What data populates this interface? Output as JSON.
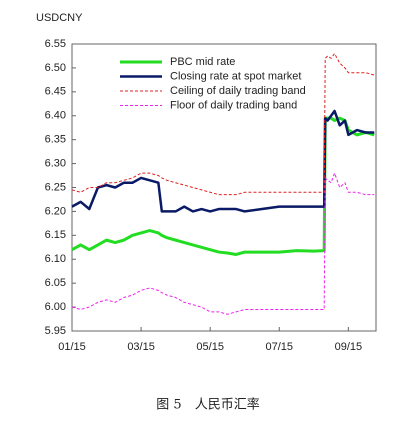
{
  "chart_data": {
    "type": "line",
    "y_label": "USDCNY",
    "caption": "图 5　人民币汇率",
    "legend": "upper left",
    "grid": false,
    "x": [
      1.0,
      1.25,
      1.5,
      1.75,
      2.0,
      2.25,
      2.5,
      2.75,
      3.0,
      3.25,
      3.5,
      3.6,
      3.75,
      4.0,
      4.25,
      4.5,
      4.75,
      5.0,
      5.25,
      5.5,
      5.75,
      6.0,
      6.5,
      7.0,
      7.5,
      8.0,
      8.3,
      8.33,
      8.4,
      8.5,
      8.6,
      8.75,
      8.9,
      9.0,
      9.25,
      9.5,
      9.75
    ],
    "xlim": [
      1,
      9.8
    ],
    "xticks": [
      {
        "value": 1,
        "label": "01/15"
      },
      {
        "value": 3,
        "label": "03/15"
      },
      {
        "value": 5,
        "label": "05/15"
      },
      {
        "value": 7,
        "label": "07/15"
      },
      {
        "value": 9,
        "label": "09/15"
      }
    ],
    "ylim": [
      5.95,
      6.55
    ],
    "yticks": [
      5.95,
      {
        "value": 6.0,
        "label": "6.00"
      },
      6.05,
      {
        "value": 6.1,
        "label": "6.10"
      },
      6.15,
      {
        "value": 6.2,
        "label": "6.20"
      },
      6.25,
      {
        "value": 6.3,
        "label": "6.30"
      },
      6.35,
      {
        "value": 6.4,
        "label": "6.40"
      },
      6.45,
      {
        "value": 6.5,
        "label": "6.50"
      },
      6.55
    ],
    "series": [
      {
        "name": "PBC mid rate",
        "color": "#22dd22",
        "width": 3,
        "dash": false,
        "values": [
          6.12,
          6.13,
          6.12,
          6.13,
          6.14,
          6.135,
          6.14,
          6.15,
          6.155,
          6.16,
          6.155,
          6.15,
          6.145,
          6.14,
          6.135,
          6.13,
          6.125,
          6.12,
          6.115,
          6.113,
          6.11,
          6.115,
          6.115,
          6.115,
          6.118,
          6.117,
          6.118,
          6.395,
          6.395,
          6.395,
          6.39,
          6.395,
          6.39,
          6.37,
          6.36,
          6.365,
          6.36
        ]
      },
      {
        "name": "Closing rate at spot market",
        "color": "#0a1a66",
        "width": 2.5,
        "dash": false,
        "values": [
          6.21,
          6.22,
          6.205,
          6.25,
          6.255,
          6.25,
          6.26,
          6.26,
          6.27,
          6.265,
          6.26,
          6.2,
          6.2,
          6.2,
          6.21,
          6.2,
          6.205,
          6.2,
          6.205,
          6.205,
          6.205,
          6.2,
          6.205,
          6.21,
          6.21,
          6.21,
          6.21,
          6.395,
          6.39,
          6.4,
          6.41,
          6.38,
          6.39,
          6.36,
          6.37,
          6.365,
          6.365
        ]
      },
      {
        "name": "Ceiling of daily trading band",
        "color": "#e02020",
        "width": 1,
        "dash": true,
        "values": [
          6.245,
          6.24,
          6.25,
          6.25,
          6.26,
          6.26,
          6.265,
          6.27,
          6.28,
          6.28,
          6.275,
          6.27,
          6.265,
          6.26,
          6.255,
          6.25,
          6.245,
          6.24,
          6.235,
          6.235,
          6.235,
          6.24,
          6.24,
          6.24,
          6.24,
          6.24,
          6.24,
          6.52,
          6.525,
          6.52,
          6.53,
          6.51,
          6.5,
          6.49,
          6.49,
          6.49,
          6.485
        ]
      },
      {
        "name": "Floor of daily trading band",
        "color": "#ee22ee",
        "width": 1,
        "dash": true,
        "values": [
          6.0,
          5.995,
          6.0,
          6.01,
          6.015,
          6.01,
          6.02,
          6.025,
          6.035,
          6.04,
          6.035,
          6.03,
          6.025,
          6.02,
          6.01,
          6.005,
          6.0,
          5.99,
          5.99,
          5.985,
          5.99,
          5.995,
          5.995,
          5.995,
          5.995,
          5.995,
          5.995,
          6.27,
          6.265,
          6.26,
          6.28,
          6.25,
          6.26,
          6.24,
          6.24,
          6.235,
          6.235
        ]
      }
    ]
  }
}
